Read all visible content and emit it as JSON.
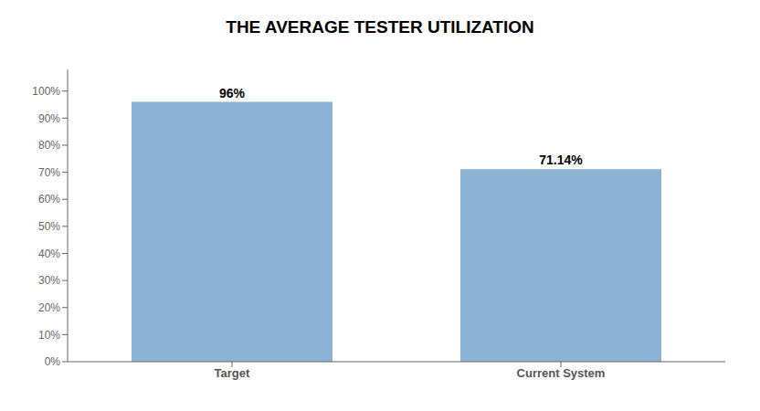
{
  "chart_data": {
    "type": "bar",
    "title": "THE AVERAGE TESTER UTILIZATION",
    "categories": [
      "Target",
      "Current System"
    ],
    "values": [
      0.96,
      0.7114
    ],
    "value_labels": [
      "96%",
      "71.14%"
    ],
    "data_labels": true,
    "color": "#8db4d4",
    "ylim": [
      0,
      1.08
    ],
    "yticks": [
      {
        "value": 0.0,
        "label": "0%"
      },
      {
        "value": 0.1,
        "label": "10%"
      },
      {
        "value": 0.2,
        "label": "20%"
      },
      {
        "value": 0.3,
        "label": "30%"
      },
      {
        "value": 0.4,
        "label": "40%"
      },
      {
        "value": 0.5,
        "label": "50%"
      },
      {
        "value": 0.6,
        "label": "60%"
      },
      {
        "value": 0.7,
        "label": "70%"
      },
      {
        "value": 0.8,
        "label": "80%"
      },
      {
        "value": 0.9,
        "label": "90%"
      },
      {
        "value": 1.0,
        "label": "100%"
      }
    ],
    "grid": false
  }
}
